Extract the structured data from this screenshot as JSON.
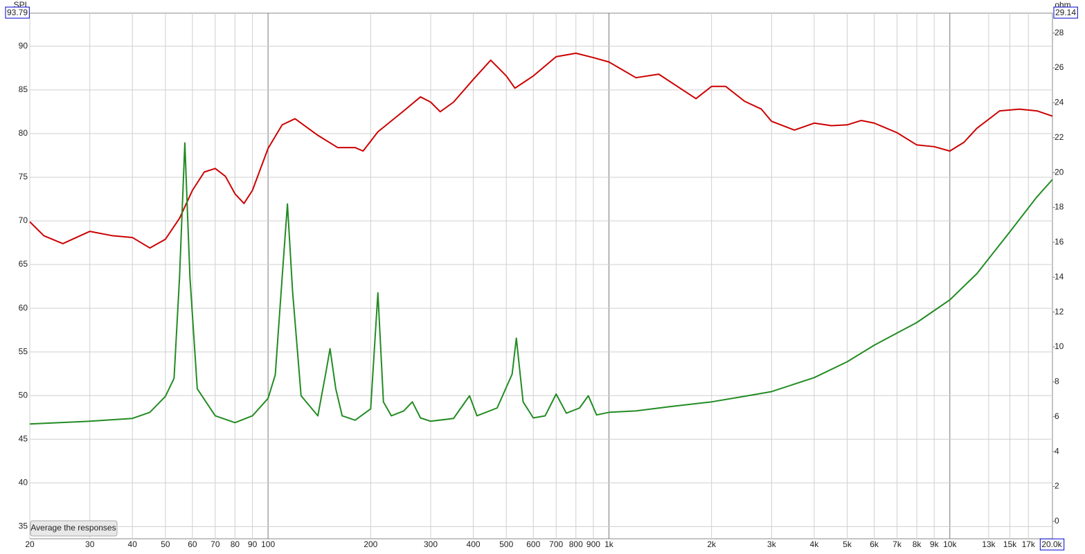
{
  "chart_data": {
    "type": "line",
    "ylabel": "SPL",
    "y2label": "ohm",
    "button": "Average the responses",
    "xscale": "log",
    "grid": true,
    "xlim": [
      20,
      20000
    ],
    "xticks": [
      20,
      30,
      40,
      50,
      60,
      70,
      80,
      90,
      100,
      200,
      300,
      400,
      500,
      600,
      700,
      800,
      900,
      {
        "value": 1000,
        "label": "1k"
      },
      {
        "value": 2000,
        "label": "2k"
      },
      {
        "value": 3000,
        "label": "3k"
      },
      {
        "value": 4000,
        "label": "4k"
      },
      {
        "value": 5000,
        "label": "5k"
      },
      {
        "value": 6000,
        "label": "6k"
      },
      {
        "value": 7000,
        "label": "7k"
      },
      {
        "value": 8000,
        "label": "8k"
      },
      {
        "value": 9000,
        "label": "9k"
      },
      {
        "value": 10000,
        "label": "10k"
      },
      {
        "value": 13000,
        "label": "13k"
      },
      {
        "value": 15000,
        "label": "15k"
      },
      {
        "value": 17000,
        "label": "17k"
      },
      {
        "value": 20000,
        "label": "20.0k"
      }
    ],
    "ylim": [
      33.6,
      93.79
    ],
    "yticks": [
      35,
      40,
      45,
      50,
      55,
      60,
      65,
      70,
      75,
      80,
      85,
      90,
      93.79
    ],
    "y2lim": [
      -1,
      29.14
    ],
    "y2ticks": [
      0,
      2,
      4,
      6,
      8,
      10,
      12,
      14,
      16,
      18,
      20,
      22,
      24,
      26,
      28,
      29.14
    ],
    "series": [
      {
        "color": "#cc0000",
        "axis": "y",
        "x": [
          20,
          22,
          25,
          30,
          35,
          40,
          45,
          50,
          55,
          60,
          65,
          70,
          75,
          80,
          85,
          90,
          100,
          110,
          120,
          140,
          160,
          180,
          190,
          210,
          250,
          280,
          300,
          320,
          350,
          400,
          450,
          500,
          530,
          600,
          700,
          800,
          900,
          1000,
          1200,
          1400,
          1800,
          2000,
          2200,
          2500,
          2800,
          3000,
          3500,
          4000,
          4500,
          5000,
          5500,
          6000,
          7000,
          8000,
          9000,
          10000,
          11000,
          12000,
          14000,
          16000,
          18000,
          20000
        ],
        "values": [
          69.9,
          68.3,
          67.4,
          68.8,
          68.3,
          68.1,
          66.9,
          67.9,
          70.3,
          73.5,
          75.6,
          76.0,
          75.1,
          73.1,
          72.0,
          73.5,
          78.3,
          81.0,
          81.7,
          79.8,
          78.4,
          78.4,
          78.0,
          80.2,
          82.6,
          84.2,
          83.6,
          82.5,
          83.6,
          86.2,
          88.4,
          86.6,
          85.2,
          86.6,
          88.8,
          89.2,
          88.7,
          88.2,
          86.4,
          86.8,
          84.0,
          85.4,
          85.4,
          83.7,
          82.8,
          81.4,
          80.4,
          81.2,
          80.9,
          81.0,
          81.5,
          81.2,
          80.1,
          78.7,
          78.5,
          78.0,
          79.0,
          80.6,
          82.6,
          82.8,
          82.6,
          82.0
        ]
      },
      {
        "color": "#228b22",
        "axis": "y2",
        "x": [
          20,
          30,
          40,
          45,
          50,
          53,
          55,
          57,
          59,
          62,
          70,
          80,
          90,
          100,
          105,
          110,
          114,
          118,
          125,
          140,
          148,
          152,
          158,
          165,
          180,
          200,
          210,
          218,
          230,
          250,
          265,
          280,
          300,
          350,
          390,
          410,
          470,
          520,
          535,
          560,
          600,
          650,
          700,
          750,
          820,
          870,
          920,
          1000,
          1200,
          1500,
          2000,
          2500,
          3000,
          4000,
          5000,
          6000,
          8000,
          10000,
          12000,
          15000,
          18000,
          20000
        ],
        "values": [
          5.58,
          5.74,
          5.9,
          6.25,
          7.17,
          8.2,
          14.0,
          21.7,
          14.0,
          7.6,
          6.05,
          5.66,
          6.05,
          7.05,
          8.4,
          14.0,
          18.2,
          13.2,
          7.2,
          6.05,
          8.6,
          9.9,
          7.6,
          6.05,
          5.8,
          6.45,
          13.1,
          6.85,
          6.05,
          6.33,
          6.85,
          5.93,
          5.74,
          5.9,
          7.2,
          6.05,
          6.5,
          8.44,
          10.5,
          6.85,
          5.93,
          6.05,
          7.3,
          6.2,
          6.5,
          7.2,
          6.1,
          6.25,
          6.33,
          6.57,
          6.85,
          7.17,
          7.44,
          8.24,
          9.15,
          10.1,
          11.4,
          12.7,
          14.2,
          16.6,
          18.6,
          19.6
        ]
      }
    ]
  }
}
